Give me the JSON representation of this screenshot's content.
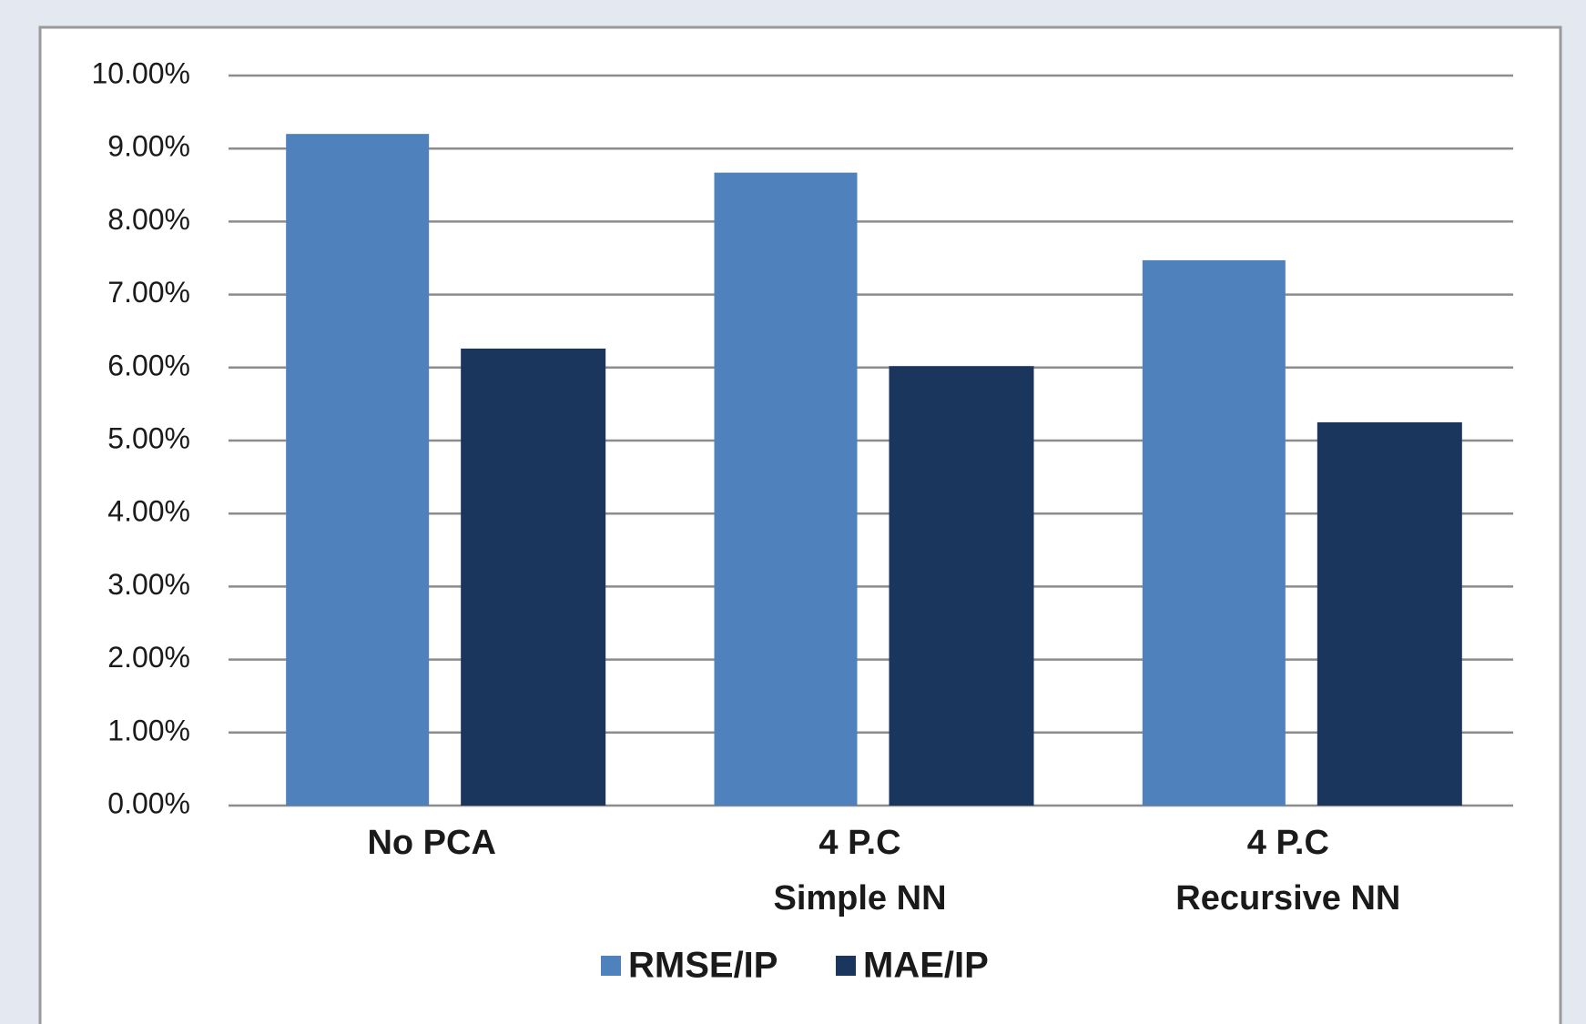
{
  "chart_data": {
    "type": "bar",
    "categories": [
      [
        "No PCA"
      ],
      [
        "4 P.C",
        "Simple NN"
      ],
      [
        "4 P.C",
        "Recursive NN"
      ]
    ],
    "series": [
      {
        "name": "RMSE/IP",
        "color": "#4f81bd",
        "values": [
          9.2,
          8.67,
          7.47
        ]
      },
      {
        "name": "MAE/IP",
        "color": "#1b365d",
        "values": [
          6.26,
          6.02,
          5.25
        ]
      }
    ],
    "ylim": [
      0,
      10
    ],
    "yticks": [
      {
        "value": 0,
        "label": "0.00%"
      },
      {
        "value": 1,
        "label": "1.00%"
      },
      {
        "value": 2,
        "label": "2.00%"
      },
      {
        "value": 3,
        "label": "3.00%"
      },
      {
        "value": 4,
        "label": "4.00%"
      },
      {
        "value": 5,
        "label": "5.00%"
      },
      {
        "value": 6,
        "label": "6.00%"
      },
      {
        "value": 7,
        "label": "7.00%"
      },
      {
        "value": 8,
        "label": "8.00%"
      },
      {
        "value": 9,
        "label": "9.00%"
      },
      {
        "value": 10,
        "label": "10.00%"
      }
    ],
    "grid": true,
    "legend": "bottom"
  }
}
